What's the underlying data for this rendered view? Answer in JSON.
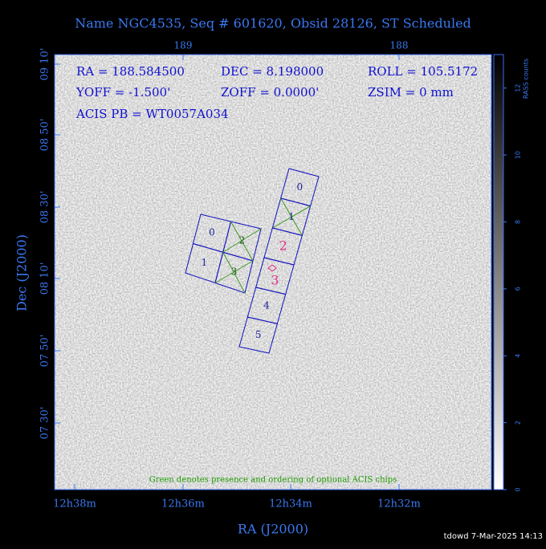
{
  "title": "Name NGC4535, Seq # 601620, Obsid 28126, ST Scheduled",
  "info": [
    "RA = 188.584500",
    "DEC = 8.198000",
    "ROLL = 105.5172",
    "YOFF =  -1.500'",
    "ZOFF =  0.0000'",
    "ZSIM = 0 mm",
    "ACIS PB = WT0057A034"
  ],
  "x_axis": {
    "label": "RA (J2000)",
    "ticks": [
      "12h38m",
      "12h36m",
      "12h34m",
      "12h32m"
    ],
    "top_ticks": [
      "189",
      "188"
    ]
  },
  "y_axis": {
    "label": "Dec (J2000)",
    "ticks": [
      "09 10'",
      "08 50'",
      "08 30'",
      "08 10'",
      "07 50'",
      "07 30'"
    ]
  },
  "colorbar": {
    "label": "RASS counts",
    "lim": [
      0,
      13
    ],
    "ticks": [
      0,
      2,
      4,
      6,
      8,
      10,
      12
    ]
  },
  "acis_i_chips": [
    "0",
    "1",
    "2",
    "3"
  ],
  "acis_s_chips": [
    "0",
    "1",
    "2",
    "3",
    "4",
    "5"
  ],
  "note": "Green denotes presence and ordering of optional ACIS chips",
  "footer": "tdowd  7-Mar-2025 14:13"
}
